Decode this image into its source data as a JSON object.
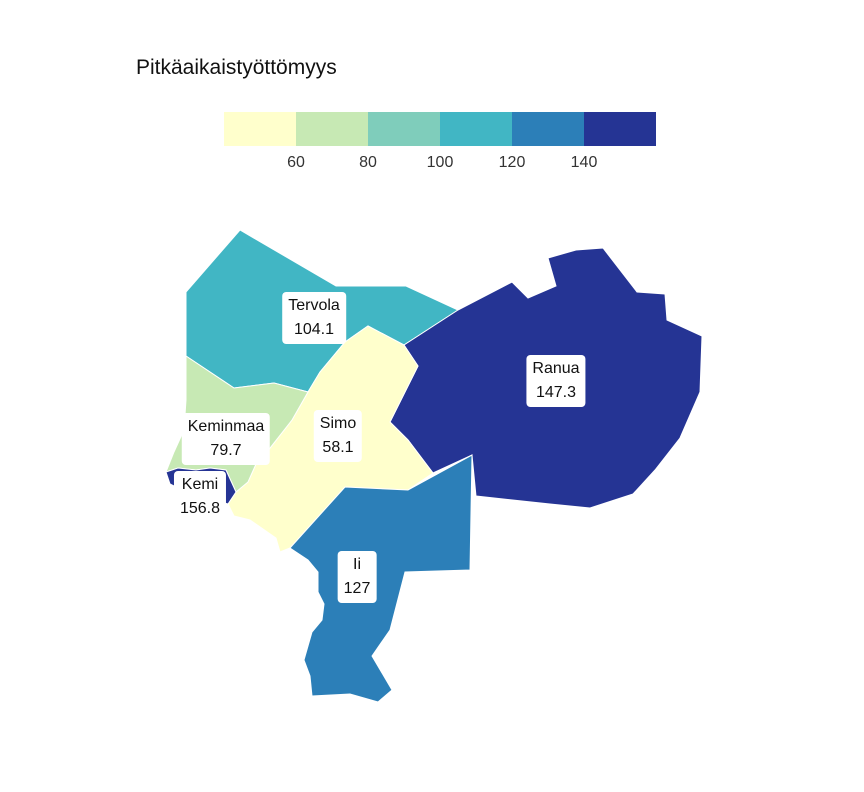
{
  "title": "Pitkäaikaistyöttömyys",
  "legend": {
    "colors": [
      "#ffffcc",
      "#c7e9b4",
      "#7fcdbb",
      "#41b6c4",
      "#2c7fb8",
      "#253494"
    ],
    "ticks": [
      "60",
      "80",
      "100",
      "120",
      "140"
    ]
  },
  "regions": [
    {
      "name": "Tervola",
      "value": "104.1",
      "color": "#41b6c4"
    },
    {
      "name": "Ranua",
      "value": "147.3",
      "color": "#253494"
    },
    {
      "name": "Simo",
      "value": "58.1",
      "color": "#ffffcc"
    },
    {
      "name": "Keminmaa",
      "value": "79.7",
      "color": "#c7e9b4"
    },
    {
      "name": "Kemi",
      "value": "156.8",
      "color": "#253494"
    },
    {
      "name": "Ii",
      "value": "127",
      "color": "#2c7fb8"
    }
  ]
}
